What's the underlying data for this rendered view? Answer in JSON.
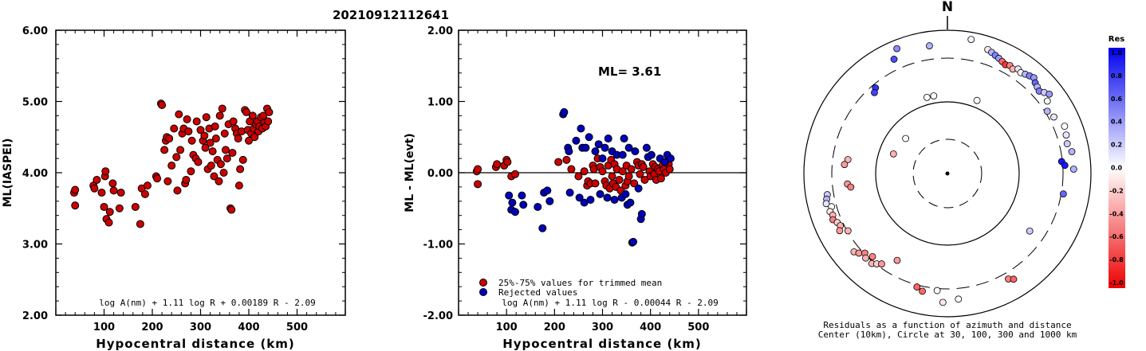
{
  "title": "20210912112641",
  "chart_data": [
    {
      "type": "scatter",
      "name": "magnitude-vs-distance",
      "xlabel": "Hypocentral distance (km)",
      "ylabel": "ML(IASPEI)",
      "xlim": [
        0,
        600
      ],
      "ylim": [
        2.0,
        6.0
      ],
      "xticks": [
        "100",
        "200",
        "300",
        "400",
        "500"
      ],
      "yticks": [
        "2.00",
        "3.00",
        "4.00",
        "5.00",
        "6.00"
      ],
      "formula": "log A(nm) + 1.11 log R + 0.00189 R - 2.09",
      "marker_color": "#cc0000",
      "points": [
        [
          38,
          3.72
        ],
        [
          40,
          3.76
        ],
        [
          40,
          3.54
        ],
        [
          78,
          3.82
        ],
        [
          80,
          3.78
        ],
        [
          85,
          3.9
        ],
        [
          95,
          3.72
        ],
        [
          100,
          3.52
        ],
        [
          102,
          3.95
        ],
        [
          103,
          4.02
        ],
        [
          105,
          3.35
        ],
        [
          110,
          3.3
        ],
        [
          112,
          3.45
        ],
        [
          118,
          3.85
        ],
        [
          120,
          3.75
        ],
        [
          132,
          3.5
        ],
        [
          135,
          3.72
        ],
        [
          165,
          3.52
        ],
        [
          175,
          3.28
        ],
        [
          178,
          3.78
        ],
        [
          185,
          3.7
        ],
        [
          190,
          3.82
        ],
        [
          208,
          3.95
        ],
        [
          210,
          3.92
        ],
        [
          218,
          4.97
        ],
        [
          220,
          4.95
        ],
        [
          225,
          4.32
        ],
        [
          228,
          4.45
        ],
        [
          230,
          4.5
        ],
        [
          232,
          3.88
        ],
        [
          235,
          4.48
        ],
        [
          240,
          4.1
        ],
        [
          245,
          4.62
        ],
        [
          250,
          4.22
        ],
        [
          252,
          3.75
        ],
        [
          255,
          4.82
        ],
        [
          258,
          4.32
        ],
        [
          262,
          4.55
        ],
        [
          265,
          4.62
        ],
        [
          268,
          3.85
        ],
        [
          270,
          3.9
        ],
        [
          272,
          4.75
        ],
        [
          275,
          4.58
        ],
        [
          280,
          4.02
        ],
        [
          282,
          4.45
        ],
        [
          285,
          4.25
        ],
        [
          290,
          4.2
        ],
        [
          292,
          4.72
        ],
        [
          295,
          4.15
        ],
        [
          300,
          4.6
        ],
        [
          305,
          4.45
        ],
        [
          308,
          4.52
        ],
        [
          310,
          4.35
        ],
        [
          312,
          4.78
        ],
        [
          315,
          4.05
        ],
        [
          318,
          4.62
        ],
        [
          320,
          4.42
        ],
        [
          322,
          4.1
        ],
        [
          325,
          4.3
        ],
        [
          328,
          3.95
        ],
        [
          330,
          4.65
        ],
        [
          332,
          4.48
        ],
        [
          335,
          4.18
        ],
        [
          338,
          3.88
        ],
        [
          340,
          4.8
        ],
        [
          342,
          4.12
        ],
        [
          345,
          4.9
        ],
        [
          348,
          4.0
        ],
        [
          350,
          4.55
        ],
        [
          352,
          4.32
        ],
        [
          355,
          4.2
        ],
        [
          358,
          4.68
        ],
        [
          362,
          3.5
        ],
        [
          364,
          3.48
        ],
        [
          366,
          4.28
        ],
        [
          368,
          4.72
        ],
        [
          372,
          4.62
        ],
        [
          375,
          4.55
        ],
        [
          378,
          4.48
        ],
        [
          380,
          3.82
        ],
        [
          382,
          4.05
        ],
        [
          385,
          4.58
        ],
        [
          388,
          4.18
        ],
        [
          392,
          4.88
        ],
        [
          395,
          4.85
        ],
        [
          398,
          4.6
        ],
        [
          400,
          4.45
        ],
        [
          402,
          4.72
        ],
        [
          405,
          4.55
        ],
        [
          408,
          4.8
        ],
        [
          410,
          4.62
        ],
        [
          412,
          4.5
        ],
        [
          415,
          4.68
        ],
        [
          418,
          4.72
        ],
        [
          420,
          4.58
        ],
        [
          422,
          4.65
        ],
        [
          425,
          4.78
        ],
        [
          428,
          4.62
        ],
        [
          430,
          4.8
        ],
        [
          432,
          4.7
        ],
        [
          435,
          4.65
        ],
        [
          438,
          4.9
        ],
        [
          440,
          4.72
        ],
        [
          442,
          4.85
        ]
      ]
    },
    {
      "type": "scatter",
      "name": "residual-vs-distance",
      "xlabel": "Hypocentral distance (km)",
      "ylabel": "ML - ML(evt)",
      "xlim": [
        0,
        600
      ],
      "ylim": [
        -2.0,
        2.0
      ],
      "xticks": [
        "100",
        "200",
        "300",
        "400",
        "500"
      ],
      "yticks": [
        "-2.00",
        "-1.00",
        "0.00",
        "1.00",
        "2.00"
      ],
      "ml_label": "ML= 3.61",
      "formula": "log A(nm) + 1.11 log R - 0.00044 R - 2.09",
      "legend": [
        {
          "label": "25%-75% values for trimmed mean",
          "color": "#cc0000"
        },
        {
          "label": "Rejected values",
          "color": "#0000bb"
        }
      ],
      "accepted": [
        [
          38,
          0.02
        ],
        [
          40,
          0.05
        ],
        [
          40,
          -0.16
        ],
        [
          78,
          0.08
        ],
        [
          80,
          0.12
        ],
        [
          95,
          0.1
        ],
        [
          100,
          0.18
        ],
        [
          102,
          0.15
        ],
        [
          110,
          -0.05
        ],
        [
          118,
          -0.02
        ],
        [
          208,
          0.15
        ],
        [
          225,
          0.18
        ],
        [
          235,
          0.05
        ],
        [
          250,
          -0.05
        ],
        [
          262,
          0.02
        ],
        [
          268,
          -0.18
        ],
        [
          270,
          -0.12
        ],
        [
          275,
          -0.15
        ],
        [
          280,
          0.1
        ],
        [
          282,
          0.05
        ],
        [
          285,
          -0.15
        ],
        [
          290,
          0.2
        ],
        [
          295,
          0.08
        ],
        [
          300,
          0.02
        ],
        [
          305,
          -0.12
        ],
        [
          308,
          -0.18
        ],
        [
          312,
          0.1
        ],
        [
          315,
          -0.22
        ],
        [
          318,
          0.18
        ],
        [
          320,
          -0.05
        ],
        [
          322,
          -0.15
        ],
        [
          325,
          0.12
        ],
        [
          328,
          -0.2
        ],
        [
          330,
          0.05
        ],
        [
          335,
          -0.1
        ],
        [
          338,
          -0.25
        ],
        [
          342,
          0.02
        ],
        [
          348,
          -0.18
        ],
        [
          350,
          0.1
        ],
        [
          352,
          -0.12
        ],
        [
          355,
          -0.05
        ],
        [
          360,
          0.05
        ],
        [
          366,
          -0.15
        ],
        [
          372,
          0.15
        ],
        [
          375,
          0.1
        ],
        [
          378,
          -0.02
        ],
        [
          382,
          0.12
        ],
        [
          385,
          0.08
        ],
        [
          388,
          -0.1
        ],
        [
          398,
          0.02
        ],
        [
          400,
          -0.05
        ],
        [
          405,
          0.12
        ],
        [
          408,
          -0.02
        ],
        [
          410,
          0.08
        ],
        [
          412,
          -0.1
        ],
        [
          415,
          0.05
        ],
        [
          418,
          0.02
        ],
        [
          422,
          -0.08
        ],
        [
          425,
          0.1
        ],
        [
          428,
          0.05
        ],
        [
          432,
          0.0
        ],
        [
          438,
          0.12
        ],
        [
          440,
          0.05
        ]
      ],
      "rejected": [
        [
          105,
          -0.32
        ],
        [
          110,
          -0.52
        ],
        [
          112,
          -0.42
        ],
        [
          118,
          -0.55
        ],
        [
          132,
          -0.32
        ],
        [
          135,
          -0.45
        ],
        [
          165,
          -0.48
        ],
        [
          175,
          -0.78
        ],
        [
          178,
          -0.28
        ],
        [
          185,
          -0.25
        ],
        [
          190,
          -0.4
        ],
        [
          218,
          0.82
        ],
        [
          220,
          0.85
        ],
        [
          228,
          0.35
        ],
        [
          230,
          0.3
        ],
        [
          232,
          -0.28
        ],
        [
          245,
          0.45
        ],
        [
          252,
          -0.35
        ],
        [
          255,
          0.62
        ],
        [
          258,
          0.35
        ],
        [
          262,
          -0.42
        ],
        [
          265,
          0.35
        ],
        [
          272,
          0.5
        ],
        [
          275,
          -0.38
        ],
        [
          285,
          0.3
        ],
        [
          292,
          0.4
        ],
        [
          295,
          -0.3
        ],
        [
          300,
          0.2
        ],
        [
          305,
          0.35
        ],
        [
          310,
          -0.35
        ],
        [
          312,
          0.48
        ],
        [
          320,
          0.3
        ],
        [
          325,
          -0.38
        ],
        [
          330,
          0.25
        ],
        [
          340,
          -0.35
        ],
        [
          342,
          0.25
        ],
        [
          345,
          0.48
        ],
        [
          348,
          -0.3
        ],
        [
          352,
          -0.45
        ],
        [
          355,
          0.35
        ],
        [
          358,
          -0.42
        ],
        [
          362,
          -0.98
        ],
        [
          364,
          -0.97
        ],
        [
          368,
          0.3
        ],
        [
          375,
          -0.22
        ],
        [
          380,
          -0.65
        ],
        [
          382,
          -0.58
        ],
        [
          392,
          0.35
        ],
        [
          395,
          0.22
        ],
        [
          402,
          0.25
        ],
        [
          420,
          0.2
        ],
        [
          430,
          0.15
        ],
        [
          435,
          0.25
        ],
        [
          442,
          0.2
        ]
      ]
    },
    {
      "type": "polar-scatter",
      "name": "residual-map",
      "north_label": "N",
      "caption_line1": "Residuals as a function of azimuth and distance",
      "caption_line2": "Center (10km), Circle at 30, 100, 300 and 1000 km",
      "colorbar_title": "Res",
      "colorbar_ticks": [
        "1.0",
        "0.8",
        "0.6",
        "0.4",
        "0.2",
        "0.0",
        "-0.2",
        "-0.4",
        "-0.6",
        "-0.8",
        "-1.0"
      ],
      "stations": [
        [
          10,
          0.95,
          0.05
        ],
        [
          -8,
          0.9,
          0.3
        ],
        [
          -25,
          0.88,
          0.7
        ],
        [
          -22,
          0.94,
          0.45
        ],
        [
          -40,
          0.78,
          0.8
        ],
        [
          -42,
          0.76,
          0.75
        ],
        [
          18,
          0.91,
          -0.1
        ],
        [
          20,
          0.9,
          0.3
        ],
        [
          22,
          0.89,
          0.5
        ],
        [
          24,
          0.88,
          0.4
        ],
        [
          26,
          0.87,
          -0.6
        ],
        [
          28,
          0.86,
          -0.8
        ],
        [
          30,
          0.87,
          -0.5
        ],
        [
          32,
          0.86,
          -0.3
        ],
        [
          34,
          0.88,
          0.1
        ],
        [
          36,
          0.87,
          0.0
        ],
        [
          38,
          0.88,
          0.3
        ],
        [
          40,
          0.89,
          0.5
        ],
        [
          42,
          0.9,
          0.4
        ],
        [
          44,
          0.88,
          0.6
        ],
        [
          46,
          0.87,
          0.3
        ],
        [
          48,
          0.86,
          0.5
        ],
        [
          50,
          0.88,
          0.2
        ],
        [
          52,
          0.9,
          0.4
        ],
        [
          54,
          0.86,
          0.0
        ],
        [
          58,
          0.82,
          0.3
        ],
        [
          62,
          0.84,
          0.1
        ],
        [
          68,
          0.88,
          0.0
        ],
        [
          72,
          0.87,
          0.1
        ],
        [
          76,
          0.86,
          0.2
        ],
        [
          80,
          0.88,
          0.3
        ],
        [
          84,
          0.8,
          0.9
        ],
        [
          86,
          0.82,
          0.9
        ],
        [
          88,
          0.88,
          0.3
        ],
        [
          100,
          0.82,
          0.6
        ],
        [
          -15,
          0.55,
          0.0
        ],
        [
          -10,
          0.55,
          0.0
        ],
        [
          22,
          0.55,
          0.0
        ],
        [
          -50,
          0.38,
          0.0
        ],
        [
          -70,
          0.4,
          -0.3
        ],
        [
          -100,
          0.85,
          0.2
        ],
        [
          -102,
          0.86,
          0.3
        ],
        [
          -104,
          0.87,
          0.1
        ],
        [
          -106,
          0.84,
          0.0
        ],
        [
          -108,
          0.86,
          -0.1
        ],
        [
          -110,
          0.85,
          -0.3
        ],
        [
          -112,
          0.86,
          -0.5
        ],
        [
          -114,
          0.84,
          -0.2
        ],
        [
          -116,
          0.83,
          -0.3
        ],
        [
          -118,
          0.85,
          -0.4
        ],
        [
          -120,
          0.8,
          -0.3
        ],
        [
          -96,
          0.7,
          -0.4
        ],
        [
          -98,
          0.68,
          -0.5
        ],
        [
          -130,
          0.85,
          -0.3
        ],
        [
          -132,
          0.83,
          -0.4
        ],
        [
          -134,
          0.8,
          -0.5
        ],
        [
          -136,
          0.82,
          -0.3
        ],
        [
          -138,
          0.78,
          -0.5
        ],
        [
          -140,
          0.82,
          -0.3
        ],
        [
          -142,
          0.8,
          -0.2
        ],
        [
          -144,
          0.78,
          -0.4
        ],
        [
          -150,
          0.7,
          -0.4
        ],
        [
          -165,
          0.82,
          -0.6
        ],
        [
          -168,
          0.84,
          -0.6
        ],
        [
          -175,
          0.82,
          0.0
        ],
        [
          -178,
          0.9,
          -0.1
        ],
        [
          175,
          0.88,
          0.0
        ],
        [
          150,
          0.85,
          -0.5
        ],
        [
          148,
          0.87,
          -0.6
        ],
        [
          125,
          0.7,
          0.2
        ],
        [
          -82,
          0.7,
          -0.3
        ],
        [
          -85,
          0.72,
          -0.4
        ]
      ]
    }
  ]
}
